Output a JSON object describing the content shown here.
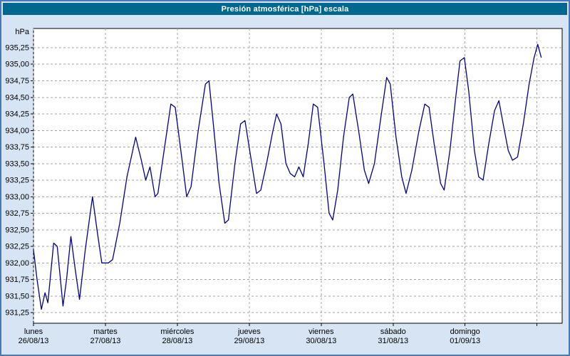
{
  "title_bar": {
    "title": "Presión atmosférica [hPa] escala"
  },
  "chart_data": {
    "type": "line",
    "title": "Presión atmosférica [hPa] escala",
    "ylabel": "hPa",
    "xlabel": "",
    "legend": "none",
    "grid": {
      "style": "dashed",
      "color": "#a6a6a6"
    },
    "colors": {
      "page_bg": "#d6e4f3",
      "outer_border": "#4a7ab5",
      "title_bar_bg": "#00688f",
      "title_text": "#ffffff",
      "plot_bg": "#ffffff",
      "plot_border": "#000000",
      "line": "#00008b",
      "label": "#000000"
    },
    "y_axis": {
      "unit_label": "hPa",
      "min": 931.09,
      "max": 935.54,
      "tick_step": 0.25,
      "ticks": [
        {
          "value": 931.25,
          "label": "931,25"
        },
        {
          "value": 931.5,
          "label": "931,50"
        },
        {
          "value": 931.75,
          "label": "931,75"
        },
        {
          "value": 932.0,
          "label": "932,00"
        },
        {
          "value": 932.25,
          "label": "932,25"
        },
        {
          "value": 932.5,
          "label": "932,50"
        },
        {
          "value": 932.75,
          "label": "932,75"
        },
        {
          "value": 933.0,
          "label": "933,00"
        },
        {
          "value": 933.25,
          "label": "933,25"
        },
        {
          "value": 933.5,
          "label": "933,50"
        },
        {
          "value": 933.75,
          "label": "933,75"
        },
        {
          "value": 934.0,
          "label": "934,00"
        },
        {
          "value": 934.25,
          "label": "934,25"
        },
        {
          "value": 934.5,
          "label": "934,50"
        },
        {
          "value": 934.75,
          "label": "934,75"
        },
        {
          "value": 935.0,
          "label": "935,00"
        },
        {
          "value": 935.25,
          "label": "935,25"
        }
      ]
    },
    "x_axis": {
      "min": 0,
      "max": 7.35,
      "unit": "days",
      "gridline_days": [
        0,
        1,
        2,
        3,
        4,
        5,
        6,
        7
      ],
      "day_labels": [
        {
          "day": 0,
          "name": "lunes",
          "date": "26/08/13"
        },
        {
          "day": 1,
          "name": "martes",
          "date": "27/08/13"
        },
        {
          "day": 2,
          "name": "miércoles",
          "date": "28/08/13"
        },
        {
          "day": 3,
          "name": "jueves",
          "date": "29/08/13"
        },
        {
          "day": 4,
          "name": "viernes",
          "date": "30/08/13"
        },
        {
          "day": 5,
          "name": "sábado",
          "date": "31/08/13"
        },
        {
          "day": 6,
          "name": "domingo",
          "date": "01/09/13"
        }
      ]
    },
    "series": [
      {
        "name": "Presión atmosférica",
        "unit": "hPa",
        "color": "#00008b",
        "points": [
          [
            0.0,
            932.2
          ],
          [
            0.05,
            931.75
          ],
          [
            0.11,
            931.3
          ],
          [
            0.16,
            931.55
          ],
          [
            0.2,
            931.4
          ],
          [
            0.28,
            932.3
          ],
          [
            0.33,
            932.25
          ],
          [
            0.37,
            931.8
          ],
          [
            0.41,
            931.35
          ],
          [
            0.46,
            931.75
          ],
          [
            0.52,
            932.4
          ],
          [
            0.58,
            931.9
          ],
          [
            0.64,
            931.45
          ],
          [
            0.72,
            932.2
          ],
          [
            0.82,
            933.0
          ],
          [
            0.89,
            932.45
          ],
          [
            0.95,
            932.0
          ],
          [
            1.04,
            932.0
          ],
          [
            1.1,
            932.05
          ],
          [
            1.2,
            932.6
          ],
          [
            1.3,
            933.3
          ],
          [
            1.42,
            933.9
          ],
          [
            1.5,
            933.55
          ],
          [
            1.56,
            933.25
          ],
          [
            1.62,
            933.45
          ],
          [
            1.69,
            933.0
          ],
          [
            1.73,
            933.05
          ],
          [
            1.83,
            933.8
          ],
          [
            1.91,
            934.4
          ],
          [
            1.97,
            934.35
          ],
          [
            2.06,
            933.6
          ],
          [
            2.13,
            933.0
          ],
          [
            2.19,
            933.15
          ],
          [
            2.29,
            934.0
          ],
          [
            2.39,
            934.7
          ],
          [
            2.44,
            934.75
          ],
          [
            2.5,
            934.1
          ],
          [
            2.58,
            933.2
          ],
          [
            2.66,
            932.6
          ],
          [
            2.71,
            932.65
          ],
          [
            2.8,
            933.5
          ],
          [
            2.88,
            934.1
          ],
          [
            2.94,
            934.15
          ],
          [
            3.02,
            933.6
          ],
          [
            3.1,
            933.05
          ],
          [
            3.16,
            933.1
          ],
          [
            3.24,
            933.5
          ],
          [
            3.32,
            933.95
          ],
          [
            3.38,
            934.25
          ],
          [
            3.44,
            934.1
          ],
          [
            3.51,
            933.5
          ],
          [
            3.57,
            933.35
          ],
          [
            3.63,
            933.3
          ],
          [
            3.69,
            933.45
          ],
          [
            3.75,
            933.3
          ],
          [
            3.82,
            933.8
          ],
          [
            3.89,
            934.4
          ],
          [
            3.95,
            934.35
          ],
          [
            4.04,
            933.5
          ],
          [
            4.11,
            932.75
          ],
          [
            4.16,
            932.65
          ],
          [
            4.23,
            933.1
          ],
          [
            4.31,
            933.9
          ],
          [
            4.39,
            934.5
          ],
          [
            4.44,
            934.55
          ],
          [
            4.52,
            934.0
          ],
          [
            4.6,
            933.4
          ],
          [
            4.66,
            933.2
          ],
          [
            4.74,
            933.5
          ],
          [
            4.83,
            934.2
          ],
          [
            4.91,
            934.8
          ],
          [
            4.96,
            934.7
          ],
          [
            5.04,
            933.9
          ],
          [
            5.12,
            933.3
          ],
          [
            5.18,
            933.05
          ],
          [
            5.26,
            933.4
          ],
          [
            5.36,
            934.0
          ],
          [
            5.44,
            934.4
          ],
          [
            5.5,
            934.35
          ],
          [
            5.57,
            933.8
          ],
          [
            5.66,
            933.2
          ],
          [
            5.71,
            933.1
          ],
          [
            5.79,
            933.7
          ],
          [
            5.87,
            934.5
          ],
          [
            5.93,
            935.05
          ],
          [
            5.99,
            935.1
          ],
          [
            6.05,
            934.6
          ],
          [
            6.13,
            933.7
          ],
          [
            6.19,
            933.3
          ],
          [
            6.25,
            933.25
          ],
          [
            6.33,
            933.8
          ],
          [
            6.41,
            934.3
          ],
          [
            6.47,
            934.45
          ],
          [
            6.53,
            934.1
          ],
          [
            6.6,
            933.7
          ],
          [
            6.66,
            933.55
          ],
          [
            6.73,
            933.6
          ],
          [
            6.81,
            934.1
          ],
          [
            6.89,
            934.7
          ],
          [
            6.96,
            935.1
          ],
          [
            7.01,
            935.3
          ],
          [
            7.06,
            935.1
          ]
        ]
      }
    ]
  }
}
